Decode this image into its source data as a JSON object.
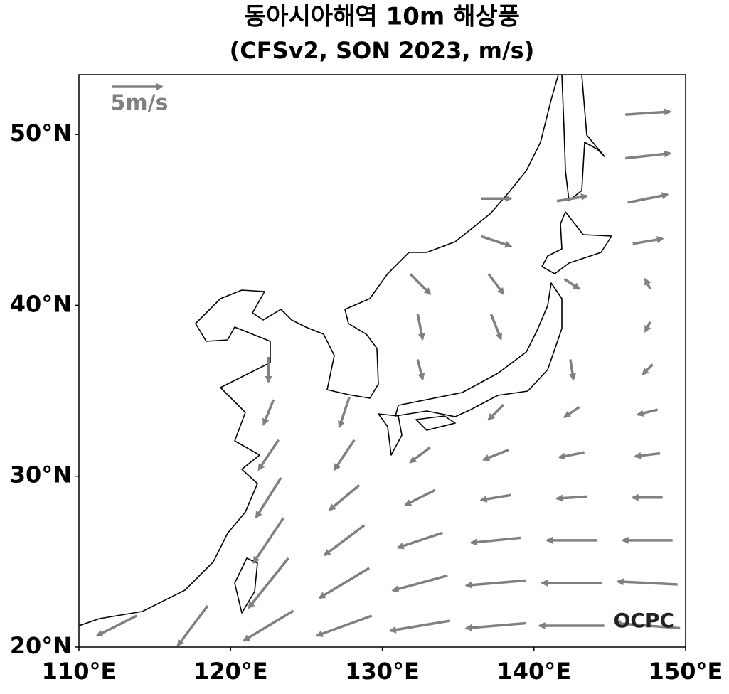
{
  "chart_data": {
    "type": "quiver",
    "title": "동아시아해역 10m 해상풍",
    "subtitle": "(CFSv2, SON 2023, m/s)",
    "xlim": [
      110,
      150
    ],
    "ylim": [
      20,
      53.5
    ],
    "xticks": [
      {
        "value": 110,
        "label": "110°E"
      },
      {
        "value": 120,
        "label": "120°E"
      },
      {
        "value": 130,
        "label": "130°E"
      },
      {
        "value": 140,
        "label": "140°E"
      },
      {
        "value": 150,
        "label": "150°E"
      }
    ],
    "yticks": [
      {
        "value": 20,
        "label": "20°N"
      },
      {
        "value": 30,
        "label": "30°N"
      },
      {
        "value": 40,
        "label": "40°N"
      },
      {
        "value": 50,
        "label": "50°N"
      }
    ],
    "color": "#808080",
    "reference_speed": 5,
    "reference_label": "5m/s",
    "watermark": "OCPC",
    "lons": [
      112.5,
      117.5,
      122.5,
      127.5,
      132.5,
      137.5,
      142.5,
      147.5
    ],
    "lats": [
      51.25,
      48.75,
      46.25,
      43.75,
      41.25,
      38.75,
      36.25,
      33.75,
      31.25,
      28.75,
      26.25,
      23.75,
      21.25
    ],
    "u": [
      [
        null,
        null,
        null,
        null,
        null,
        null,
        null,
        4.5
      ],
      [
        null,
        null,
        null,
        null,
        null,
        null,
        null,
        4.5
      ],
      [
        null,
        null,
        null,
        null,
        null,
        3,
        3,
        4
      ],
      [
        null,
        null,
        null,
        null,
        null,
        3,
        null,
        3
      ],
      [
        null,
        null,
        null,
        null,
        2,
        1.5,
        1.5,
        -0.5
      ],
      [
        null,
        null,
        null,
        null,
        0.5,
        1,
        null,
        -0.5
      ],
      [
        null,
        null,
        0,
        null,
        0.5,
        null,
        0.3,
        -1
      ],
      [
        null,
        null,
        -1,
        -1,
        null,
        -1.5,
        -1.5,
        -2
      ],
      [
        null,
        null,
        -2,
        -2,
        -2,
        -2.5,
        -2.5,
        -2.5
      ],
      [
        null,
        null,
        -2.5,
        -3,
        -3,
        -3,
        -3,
        -3
      ],
      [
        null,
        null,
        -3,
        -4,
        -4.5,
        -5,
        -5,
        -5
      ],
      [
        null,
        null,
        -4,
        -5,
        -5.5,
        -6,
        -6,
        -6
      ],
      [
        -4,
        -3,
        -5,
        -5.5,
        -6,
        -6,
        -6.5,
        -6.5
      ]
    ],
    "v": [
      [
        null,
        null,
        null,
        null,
        null,
        null,
        null,
        0.3
      ],
      [
        null,
        null,
        null,
        null,
        null,
        null,
        null,
        0.5
      ],
      [
        null,
        null,
        null,
        null,
        null,
        0,
        0.5,
        0.8
      ],
      [
        null,
        null,
        null,
        null,
        null,
        -1,
        null,
        0.5
      ],
      [
        null,
        null,
        null,
        null,
        -2,
        -2,
        -1,
        1
      ],
      [
        null,
        null,
        null,
        null,
        -2.5,
        -2.5,
        null,
        -1
      ],
      [
        null,
        null,
        -2.5,
        null,
        -2,
        null,
        -2,
        -1
      ],
      [
        null,
        null,
        -2.5,
        -3,
        null,
        -1.5,
        -1,
        -0.5
      ],
      [
        null,
        null,
        -3,
        -3,
        -1.5,
        -1,
        -0.5,
        -0.3
      ],
      [
        null,
        null,
        -4,
        -2.5,
        -1.5,
        -0.5,
        -0.2,
        0
      ],
      [
        null,
        null,
        -4.5,
        -3,
        -1.5,
        -0.5,
        0,
        0
      ],
      [
        null,
        null,
        -5,
        -3,
        -1.5,
        -0.5,
        0,
        0.3
      ],
      [
        -2,
        -4,
        -3,
        -2,
        -1,
        -0.5,
        0,
        0.5
      ]
    ]
  }
}
